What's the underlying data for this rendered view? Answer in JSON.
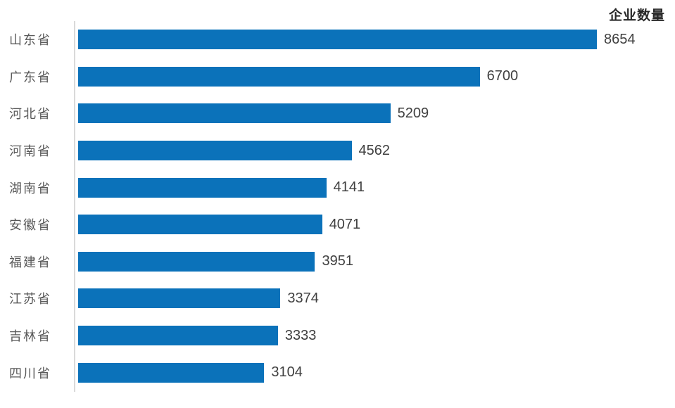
{
  "chart_data": {
    "type": "bar",
    "orientation": "horizontal",
    "title": "企业数量",
    "categories": [
      "山东省",
      "广东省",
      "河北省",
      "河南省",
      "湖南省",
      "安徽省",
      "福建省",
      "江苏省",
      "吉林省",
      "四川省"
    ],
    "values": [
      8654,
      6700,
      5209,
      4562,
      4141,
      4071,
      3951,
      3374,
      3333,
      3104
    ],
    "xlabel": "",
    "ylabel": "",
    "xlim": [
      0,
      8654
    ],
    "grid": false,
    "legend": "none",
    "value_labels_shown": true,
    "bar_color": "#0B72BA",
    "axis_line_color": "#D9D9D9",
    "category_label_color": "#595959",
    "value_label_color": "#404040",
    "title_color": "#262626"
  }
}
